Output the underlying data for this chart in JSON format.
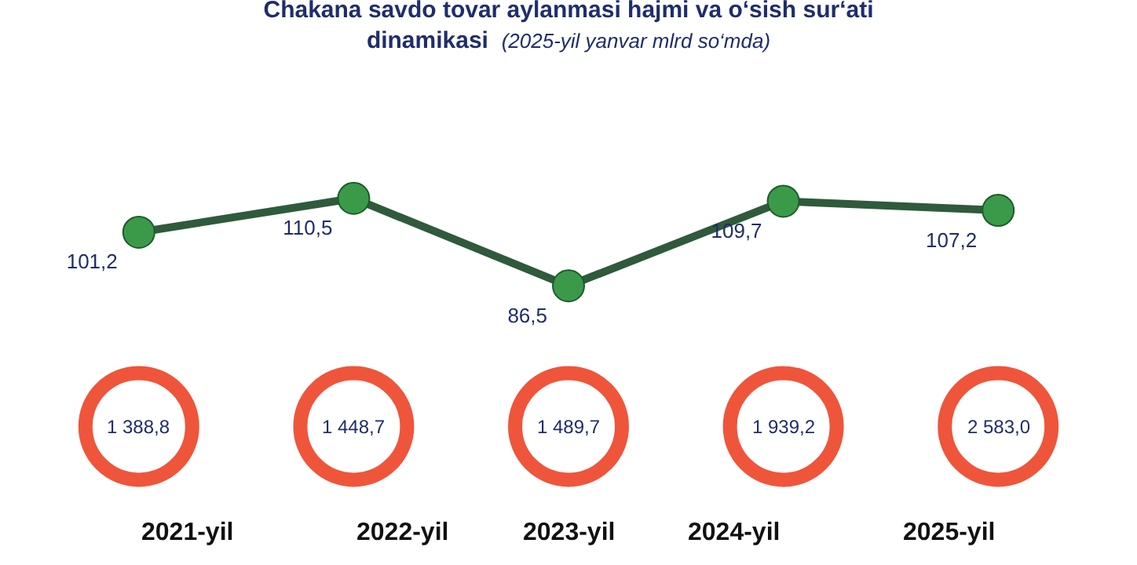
{
  "chart_data": [
    {
      "type": "line",
      "title": "Chakana savdo tovar aylanmasi hajmi va o‘sish sur‘ati dinamikasi",
      "subtitle": "(2025-yil yanvar mlrd so‘mda)",
      "categories": [
        null,
        null,
        null,
        null,
        null
      ],
      "values": [
        101.2,
        110.5,
        86.5,
        109.7,
        107.2
      ],
      "value_labels": [
        "101,2",
        "110,5",
        "86,5",
        "109,7",
        "107,2"
      ],
      "color": "#2f5a3c",
      "marker": "circle",
      "tick_labels": false
    },
    {
      "type": "other",
      "categories": [
        "2021-yil",
        "2022-yil",
        "2023-yil",
        "2024-yil",
        "2025-yil"
      ],
      "value_labels": [
        "1 388,8",
        "1 448,7",
        "1 489,7",
        "1 939,2",
        "2 583,0"
      ],
      "color": "#3cb54a"
    }
  ]
}
